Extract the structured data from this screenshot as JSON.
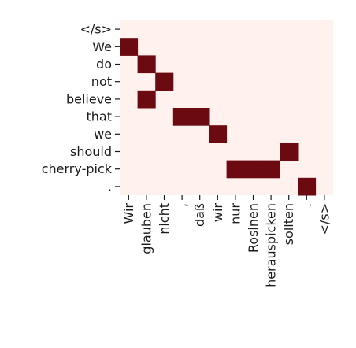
{
  "chart_data": {
    "type": "heatmap",
    "title": "",
    "xlabel": "",
    "ylabel": "",
    "x_categories": [
      "Wir",
      "glauben",
      "nicht",
      ",",
      "daß",
      "wir",
      "nur",
      "Rosinen",
      "herauspicken",
      "sollten",
      ".",
      "</s>"
    ],
    "y_categories": [
      "</s>",
      "We",
      "do",
      "not",
      "believe",
      "that",
      "we",
      "should",
      "cherry-pick",
      "."
    ],
    "cells": [
      {
        "row": 1,
        "col": 0,
        "value": 1
      },
      {
        "row": 2,
        "col": 1,
        "value": 1
      },
      {
        "row": 3,
        "col": 2,
        "value": 1
      },
      {
        "row": 4,
        "col": 1,
        "value": 1
      },
      {
        "row": 5,
        "col": 3,
        "value": 1
      },
      {
        "row": 5,
        "col": 4,
        "value": 1
      },
      {
        "row": 6,
        "col": 5,
        "value": 1
      },
      {
        "row": 7,
        "col": 9,
        "value": 1
      },
      {
        "row": 8,
        "col": 6,
        "value": 1
      },
      {
        "row": 8,
        "col": 7,
        "value": 1
      },
      {
        "row": 8,
        "col": 8,
        "value": 1
      },
      {
        "row": 9,
        "col": 10,
        "value": 1
      }
    ],
    "colors": {
      "background": "#fff2ee",
      "high": "#6b0a10"
    },
    "grid": false,
    "legend": "none"
  }
}
